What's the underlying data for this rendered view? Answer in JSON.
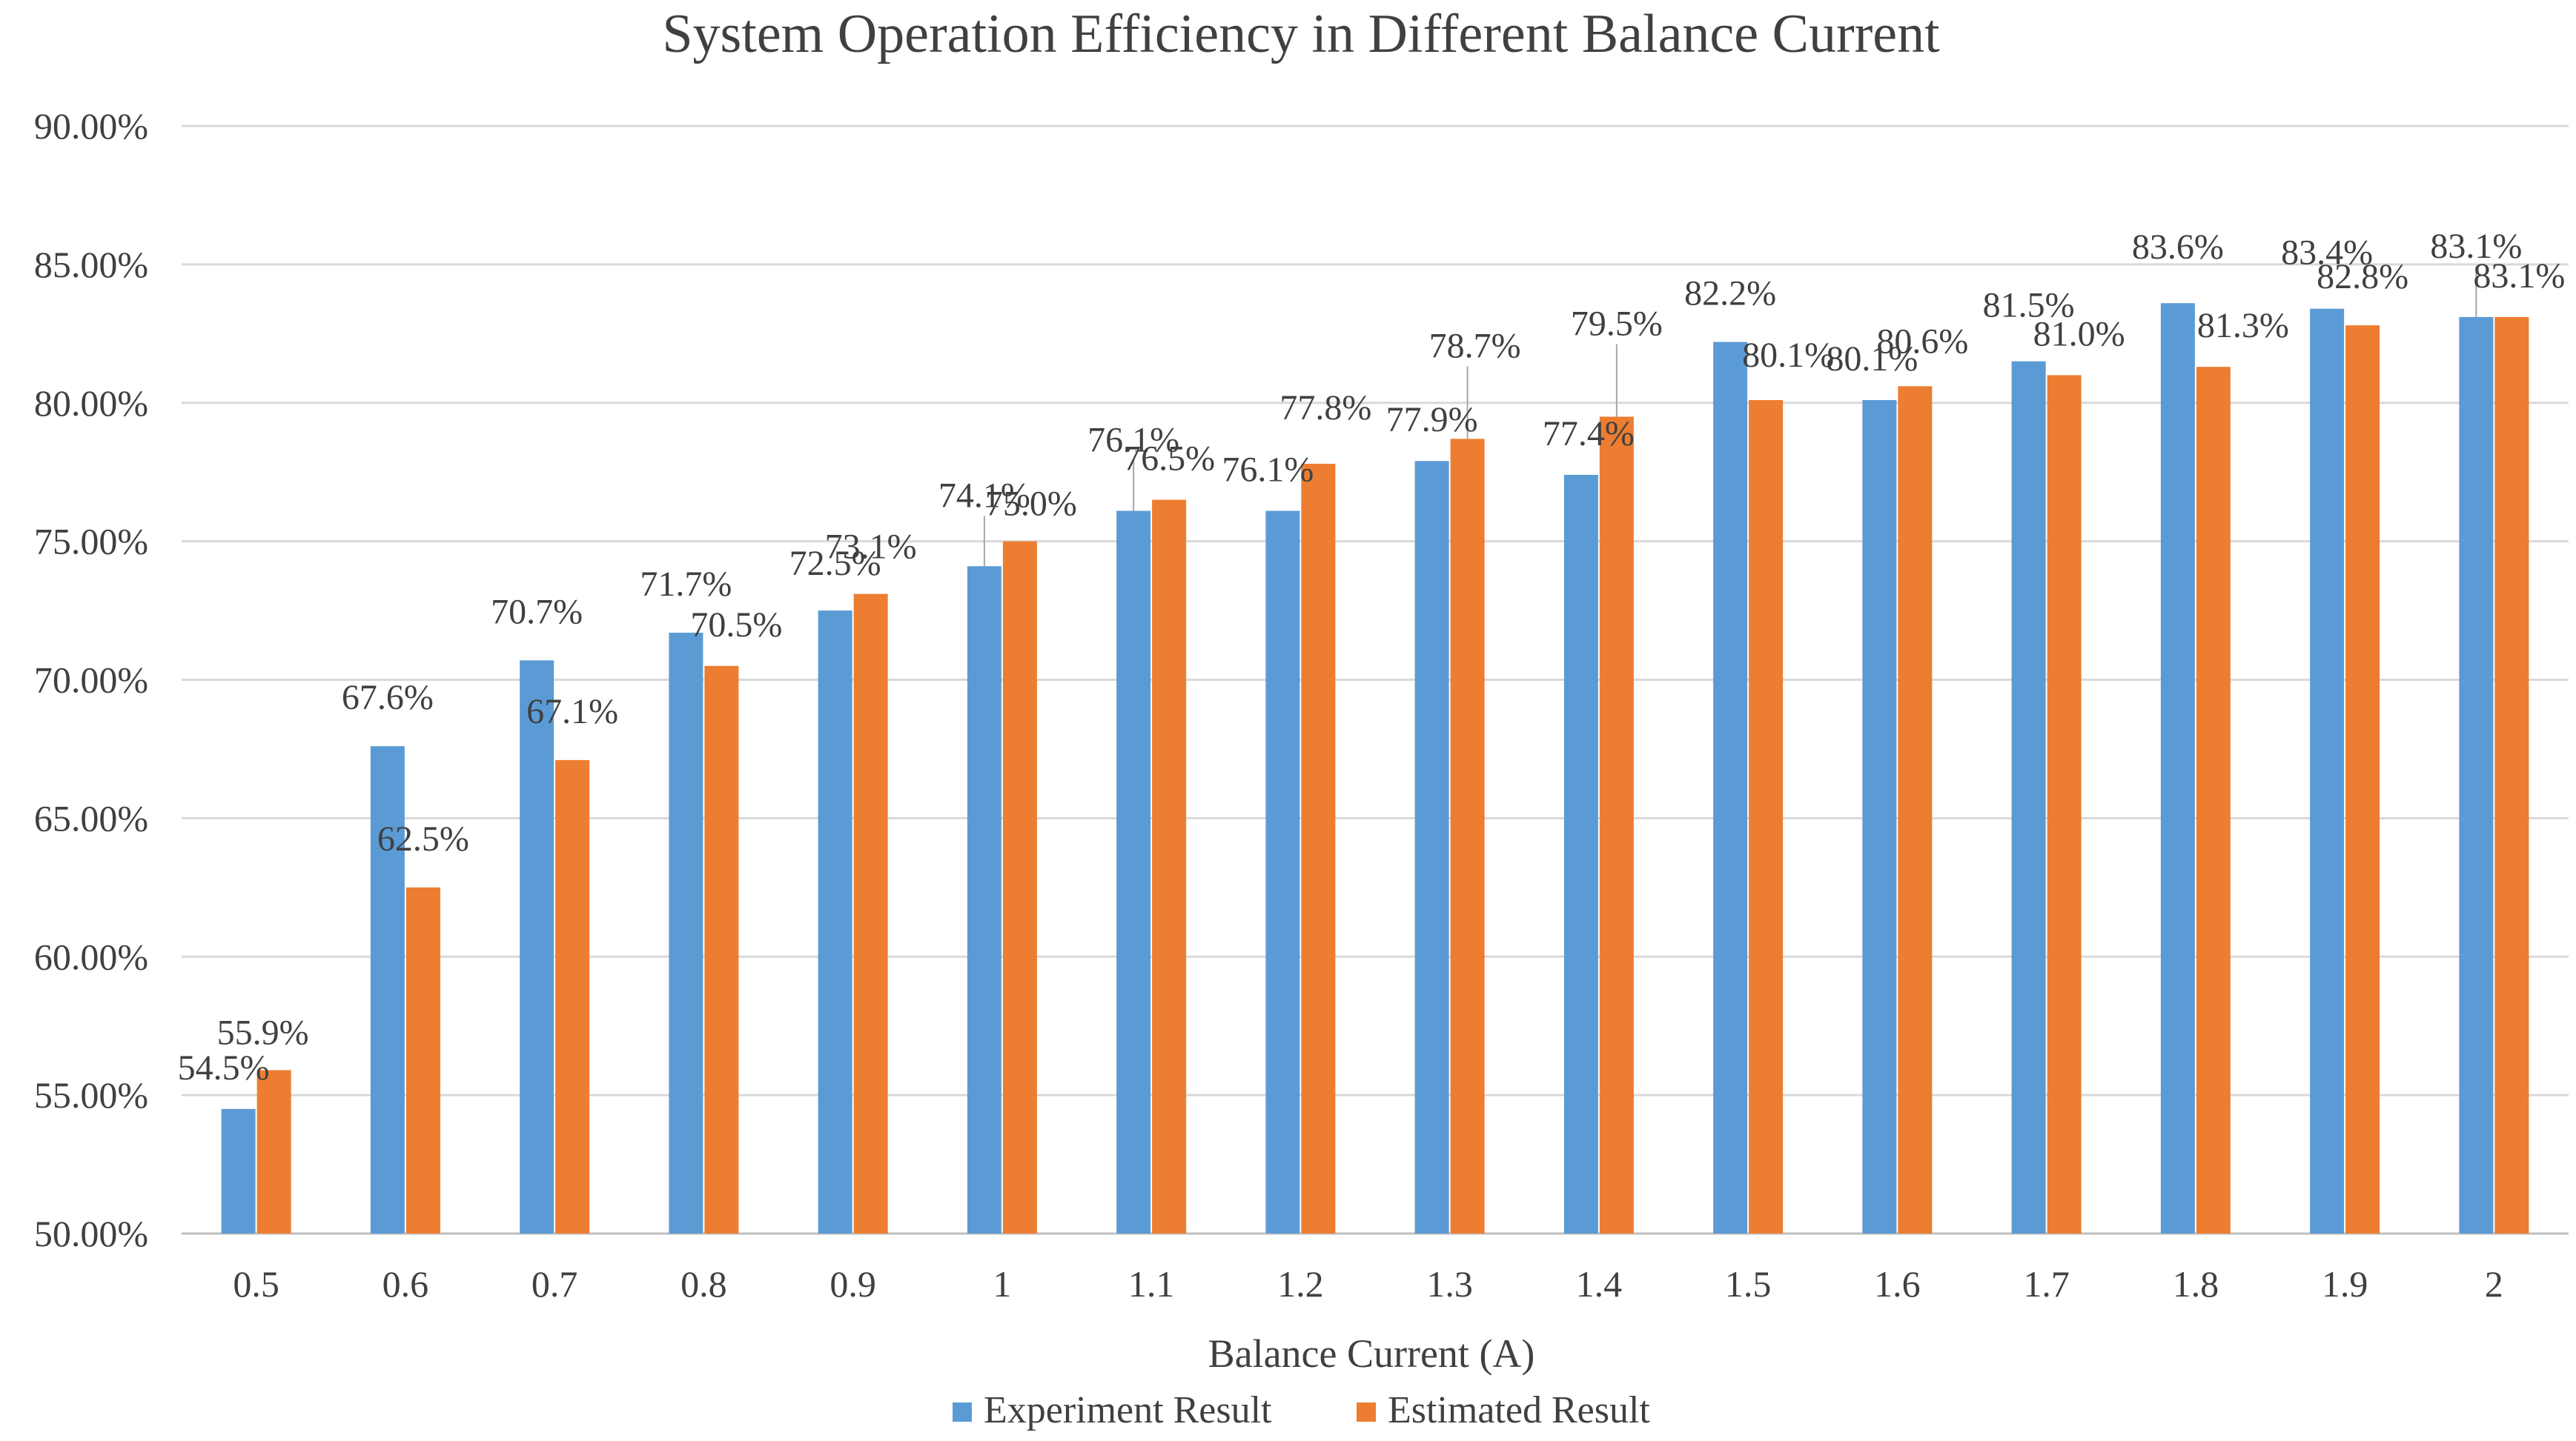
{
  "chart_data": {
    "type": "bar",
    "title": "System Operation Efficiency in Different Balance Current",
    "xlabel": "Balance Current (A)",
    "ylabel": "",
    "categories": [
      "0.5",
      "0.6",
      "0.7",
      "0.8",
      "0.9",
      "1",
      "1.1",
      "1.2",
      "1.3",
      "1.4",
      "1.5",
      "1.6",
      "1.7",
      "1.8",
      "1.9",
      "2"
    ],
    "ylim": [
      50,
      90
    ],
    "yticks": [
      50,
      55,
      60,
      65,
      70,
      75,
      80,
      85,
      90
    ],
    "ytick_labels": [
      "50.00%",
      "55.00%",
      "60.00%",
      "65.00%",
      "70.00%",
      "75.00%",
      "80.00%",
      "85.00%",
      "90.00%"
    ],
    "grid": true,
    "legend_position": "bottom",
    "series": [
      {
        "name": "Experiment Result",
        "color": "#5b9bd5",
        "values": [
          54.5,
          67.6,
          70.7,
          71.7,
          72.5,
          74.1,
          76.1,
          76.1,
          77.9,
          77.4,
          82.2,
          80.1,
          81.5,
          83.6,
          83.4,
          83.1
        ],
        "labels": [
          "54.5%",
          "67.6%",
          "70.7%",
          "71.7%",
          "72.5%",
          "74.1%",
          "76.1%",
          "76.1%",
          "77.9%",
          "77.4%",
          "82.2%",
          "80.1%",
          "81.5%",
          "83.6%",
          "83.4%",
          "83.1%"
        ]
      },
      {
        "name": "Estimated Result",
        "color": "#ed7d31",
        "values": [
          55.9,
          62.5,
          67.1,
          70.5,
          73.1,
          75.0,
          76.5,
          77.8,
          78.7,
          79.5,
          80.1,
          80.6,
          81.0,
          81.3,
          82.8,
          83.1
        ],
        "labels": [
          "55.9%",
          "62.5%",
          "67.1%",
          "70.5%",
          "73.1%",
          "75.0%",
          "76.5%",
          "77.8%",
          "78.7%",
          "79.5%",
          "80.1%",
          "80.6%",
          "81.0%",
          "81.3%",
          "82.8%",
          "83.1%"
        ]
      }
    ]
  }
}
